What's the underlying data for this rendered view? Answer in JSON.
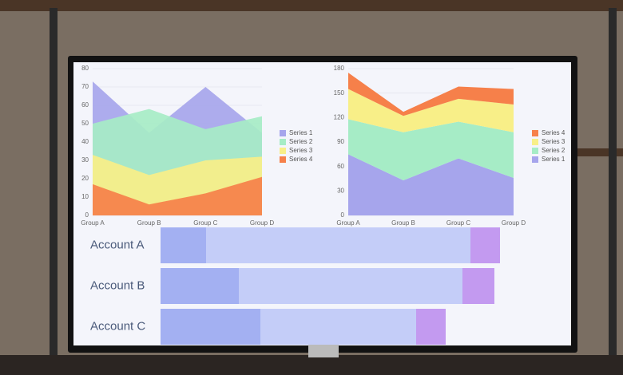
{
  "chart_data": [
    {
      "type": "area",
      "stacked": false,
      "categories": [
        "Group A",
        "Group B",
        "Group C",
        "Group D"
      ],
      "series": [
        {
          "name": "Series 1",
          "color": "#a6a5ec",
          "values": [
            73,
            45,
            70,
            45
          ]
        },
        {
          "name": "Series 2",
          "color": "#a6ecc6",
          "values": [
            50,
            58,
            47,
            54
          ]
        },
        {
          "name": "Series 3",
          "color": "#f8ef88",
          "values": [
            33,
            22,
            30,
            32
          ]
        },
        {
          "name": "Series 4",
          "color": "#f6804a",
          "values": [
            17,
            6,
            12,
            21
          ]
        }
      ],
      "ylim": [
        0,
        80
      ],
      "yticks": [
        0,
        10,
        20,
        30,
        40,
        50,
        60,
        70,
        80
      ],
      "grid": true,
      "legend": "right"
    },
    {
      "type": "area",
      "stacked": true,
      "categories": [
        "Group A",
        "Group B",
        "Group C",
        "Group D"
      ],
      "series": [
        {
          "name": "Series 1",
          "color": "#a6a5ec",
          "values": [
            75,
            43,
            70,
            46
          ]
        },
        {
          "name": "Series 2",
          "color": "#a6ecc6",
          "values": [
            43,
            59,
            45,
            56
          ]
        },
        {
          "name": "Series 3",
          "color": "#f8ef88",
          "values": [
            37,
            20,
            28,
            34
          ]
        },
        {
          "name": "Series 4",
          "color": "#f6804a",
          "values": [
            20,
            5,
            15,
            19
          ]
        }
      ],
      "ylim": [
        0,
        180
      ],
      "yticks": [
        0,
        30,
        60,
        90,
        120,
        150,
        180
      ],
      "grid": true,
      "legend": "right"
    },
    {
      "type": "bar",
      "orientation": "horizontal",
      "stacked": true,
      "categories": [
        "Account A",
        "Account B",
        "Account C"
      ],
      "series": [
        {
          "color": "#a3b0f2",
          "values": [
            57,
            98,
            125
          ]
        },
        {
          "color": "#c4cdf8",
          "values": [
            331,
            280,
            195
          ]
        },
        {
          "color": "#c39af0",
          "values": [
            37,
            40,
            37
          ]
        }
      ]
    }
  ]
}
